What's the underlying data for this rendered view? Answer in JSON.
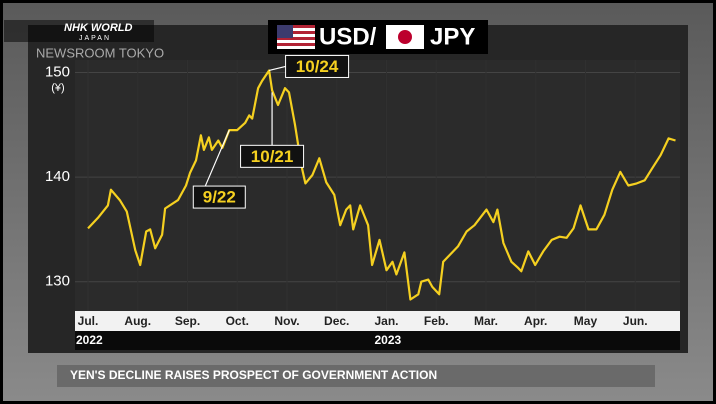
{
  "header": {
    "logo": "NHK WORLD",
    "logo_sub": "JAPAN",
    "program": "NEWSROOM TOKYO"
  },
  "ticker": "YEN'S DECLINE RAISES PROSPECT OF GOVERNMENT ACTION",
  "chart_data": {
    "type": "line",
    "title_left": "USD/",
    "title_right": "JPY",
    "y_unit": "(¥)",
    "xlim": [
      0,
      11.9
    ],
    "ylim": [
      127.2,
      151.2
    ],
    "yticks": [
      130,
      140,
      150
    ],
    "xticks": [
      {
        "value": 0,
        "label": "Jul."
      },
      {
        "value": 1,
        "label": "Aug."
      },
      {
        "value": 2,
        "label": "Sep."
      },
      {
        "value": 3,
        "label": "Oct."
      },
      {
        "value": 4,
        "label": "Nov."
      },
      {
        "value": 5,
        "label": "Dec."
      },
      {
        "value": 6,
        "label": "Jan."
      },
      {
        "value": 7,
        "label": "Feb."
      },
      {
        "value": 8,
        "label": "Mar."
      },
      {
        "value": 9,
        "label": "Apr."
      },
      {
        "value": 10,
        "label": "May"
      },
      {
        "value": 11,
        "label": "Jun."
      }
    ],
    "year_labels": [
      {
        "value": 0,
        "label": "2022"
      },
      {
        "value": 6,
        "label": "2023"
      }
    ],
    "grid": true,
    "series": [
      {
        "name": "USD/JPY",
        "color": "#f5d020",
        "x": [
          0,
          0.2,
          0.4,
          0.46,
          0.64,
          0.78,
          0.95,
          1.05,
          1.17,
          1.25,
          1.35,
          1.49,
          1.55,
          1.81,
          1.97,
          2.05,
          2.17,
          2.27,
          2.33,
          2.43,
          2.49,
          2.62,
          2.7,
          2.84,
          3,
          3.16,
          3.24,
          3.3,
          3.42,
          3.5,
          3.64,
          3.7,
          3.82,
          3.96,
          4.04,
          4.16,
          4.29,
          4.37,
          4.51,
          4.65,
          4.79,
          4.95,
          5.07,
          5.19,
          5.27,
          5.33,
          5.47,
          5.63,
          5.71,
          5.86,
          6,
          6.12,
          6.2,
          6.36,
          6.48,
          6.64,
          6.7,
          6.84,
          6.92,
          7.06,
          7.14,
          7.28,
          7.44,
          7.61,
          7.77,
          7.93,
          8.01,
          8.15,
          8.23,
          8.35,
          8.51,
          8.65,
          8.71,
          8.85,
          8.99,
          9.15,
          9.32,
          9.48,
          9.62,
          9.76,
          9.9,
          10.06,
          10.22,
          10.38,
          10.54,
          10.7,
          10.86,
          11.03,
          11.19,
          11.35,
          11.51,
          11.67,
          11.81
        ],
        "values": [
          135.1,
          136.1,
          137.3,
          138.8,
          137.8,
          136.7,
          133,
          131.6,
          134.8,
          135,
          133.2,
          134.5,
          137,
          137.8,
          139.2,
          140.4,
          141.6,
          144,
          142.6,
          143.8,
          142.6,
          143.5,
          142.8,
          144.5,
          144.5,
          145.2,
          145.9,
          145.6,
          148.5,
          149.2,
          150.2,
          148.3,
          146.9,
          148.5,
          148.1,
          145,
          141.1,
          139.4,
          140.2,
          141.8,
          139.5,
          138.3,
          135.4,
          136.9,
          137.3,
          135,
          137.3,
          135.4,
          131.6,
          134,
          131.1,
          131.9,
          130.7,
          132.8,
          128.3,
          128.8,
          130,
          130.2,
          129.5,
          128.8,
          131.9,
          132.6,
          133.4,
          134.8,
          135.4,
          136.4,
          136.9,
          135.7,
          136.9,
          133.7,
          131.9,
          131.3,
          131,
          132.9,
          131.6,
          132.9,
          134,
          134.3,
          134.2,
          135.1,
          137.3,
          135,
          135,
          136.4,
          138.8,
          140.5,
          139.2,
          139.4,
          139.7,
          140.9,
          142.1,
          143.7,
          143.5
        ]
      }
    ],
    "annotations": [
      {
        "text": "10/24",
        "x": 3.64,
        "y": 150.2
      },
      {
        "text": "10/21",
        "x": 3.7,
        "y": 148.3
      },
      {
        "text": "9/22",
        "x": 2.84,
        "y": 144.5
      }
    ]
  }
}
